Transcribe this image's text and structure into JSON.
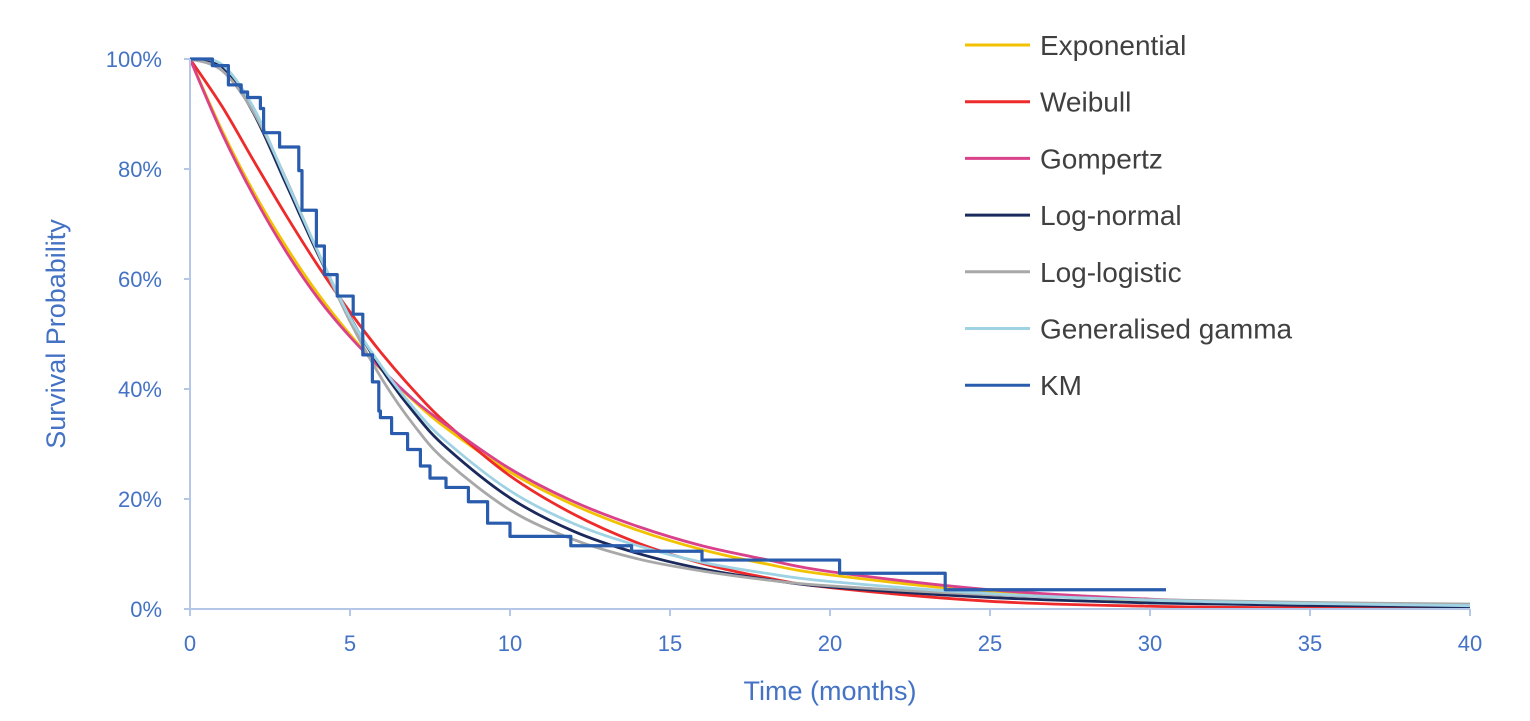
{
  "chart_data": {
    "type": "line",
    "title": "",
    "xlabel": "Time (months)",
    "ylabel": "Survival Probability",
    "xlim": [
      0,
      40
    ],
    "ylim": [
      0,
      100
    ],
    "x_ticks": [
      "0",
      "5",
      "10",
      "15",
      "20",
      "25",
      "30",
      "35",
      "40"
    ],
    "y_ticks": [
      "0%",
      "20%",
      "40%",
      "60%",
      "80%",
      "100%"
    ],
    "grid": false,
    "legend_position": "top-right",
    "axis_color": "#4472c4",
    "x": [
      0,
      1,
      2,
      3,
      4,
      5,
      6,
      7,
      8,
      10,
      12,
      14,
      16,
      18,
      20,
      25,
      30,
      35,
      40
    ],
    "series": [
      {
        "name": "Exponential",
        "color": "#f2c200",
        "step": false,
        "values": [
          100,
          87.0,
          75.7,
          65.9,
          57.3,
          49.9,
          43.4,
          37.8,
          32.9,
          24.9,
          18.9,
          14.3,
          10.8,
          8.2,
          6.2,
          3.1,
          1.5,
          0.8,
          0.4
        ]
      },
      {
        "name": "Weibull",
        "color": "#ee2a2a",
        "step": false,
        "values": [
          100,
          91.4,
          81.4,
          71.6,
          62.4,
          54.0,
          46.4,
          39.7,
          33.8,
          24.2,
          17.2,
          12.0,
          8.3,
          5.7,
          3.9,
          1.4,
          0.5,
          0.2,
          0.1
        ]
      },
      {
        "name": "Gompertz",
        "color": "#d9428a",
        "step": false,
        "values": [
          100,
          86.5,
          75.0,
          65.0,
          56.5,
          49.5,
          43.5,
          38.0,
          33.5,
          25.5,
          19.5,
          15.0,
          11.5,
          9.0,
          6.8,
          3.5,
          1.8,
          1.0,
          0.6
        ]
      },
      {
        "name": "Log-normal",
        "color": "#1b2a5c",
        "step": false,
        "values": [
          100,
          98.6,
          90.0,
          77.3,
          64.5,
          53.1,
          43.5,
          35.7,
          29.4,
          20.2,
          14.1,
          10.1,
          7.3,
          5.4,
          4.0,
          2.1,
          1.1,
          0.65,
          0.4
        ]
      },
      {
        "name": "Log-logistic",
        "color": "#a8a8a8",
        "step": false,
        "values": [
          100,
          97.9,
          90.2,
          78.2,
          64.8,
          52.3,
          41.8,
          33.4,
          26.9,
          18.0,
          12.6,
          9.1,
          6.9,
          5.3,
          4.2,
          2.6,
          1.7,
          1.2,
          0.9
        ]
      },
      {
        "name": "Generalised gamma",
        "color": "#9fd2e3",
        "step": false,
        "values": [
          100,
          99.0,
          91.0,
          78.0,
          65.0,
          53.0,
          44.0,
          36.5,
          30.5,
          21.5,
          15.5,
          11.5,
          8.5,
          6.5,
          5.0,
          2.8,
          1.6,
          1.0,
          0.6
        ]
      },
      {
        "name": "KM",
        "color": "#2a5cad",
        "step": true,
        "x": [
          0,
          0.7,
          1.2,
          1.6,
          1.8,
          2.2,
          2.3,
          2.8,
          3.4,
          3.5,
          3.95,
          4.2,
          4.6,
          5.1,
          5.4,
          5.7,
          5.9,
          5.95,
          6.3,
          6.8,
          7.2,
          7.5,
          8.0,
          8.7,
          9.3,
          10.0,
          11.9,
          13.8,
          16.0,
          20.3,
          23.6,
          30.5
        ],
        "values": [
          100,
          98.8,
          95.3,
          94,
          93,
          91,
          86.6,
          84,
          79.7,
          72.5,
          66,
          60.8,
          56.9,
          53.6,
          46.2,
          41.3,
          36,
          34.8,
          31.9,
          29,
          26,
          23.8,
          22.1,
          19.5,
          15.6,
          13.2,
          11.5,
          10.5,
          8.9,
          6.5,
          3.5,
          3.5
        ]
      }
    ]
  }
}
